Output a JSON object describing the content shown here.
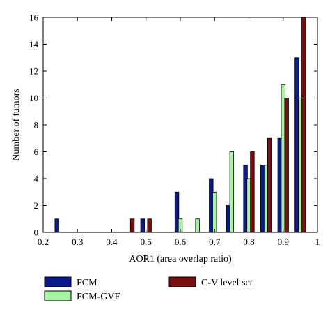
{
  "chart_data": {
    "type": "bar",
    "xlabel": "AOR1 (area overlap ratio)",
    "ylabel": "Number of tumors",
    "xlim": [
      0.2,
      1.0
    ],
    "ylim": [
      0,
      16
    ],
    "x_ticks": [
      "0.2",
      "0.3",
      "0.4",
      "0.5",
      "0.6",
      "0.7",
      "0.8",
      "0.9",
      "1"
    ],
    "y_ticks": [
      "0",
      "2",
      "4",
      "6",
      "8",
      "10",
      "12",
      "14",
      "16"
    ],
    "bin_width": 0.025,
    "grid": false,
    "legend_placement": "bottom",
    "series": [
      {
        "name": "FCM",
        "color": "#0a1a8c",
        "x": [
          0.24,
          0.49,
          0.59,
          0.69,
          0.74,
          0.79,
          0.84,
          0.89,
          0.94
        ],
        "values": [
          1,
          1,
          3,
          4,
          2,
          5,
          5,
          7,
          13
        ]
      },
      {
        "name": "FCM-GVF",
        "color": "#a5f5a0",
        "x": [
          0.6,
          0.65,
          0.7,
          0.75,
          0.8,
          0.85,
          0.9,
          0.95
        ],
        "values": [
          1,
          1,
          3,
          6,
          4,
          5,
          11,
          10
        ]
      },
      {
        "name": "C-V level set",
        "color": "#7a0f0f",
        "x": [
          0.46,
          0.51,
          0.81,
          0.86,
          0.91,
          0.96
        ],
        "values": [
          1,
          1,
          6,
          7,
          10,
          16
        ]
      }
    ]
  }
}
